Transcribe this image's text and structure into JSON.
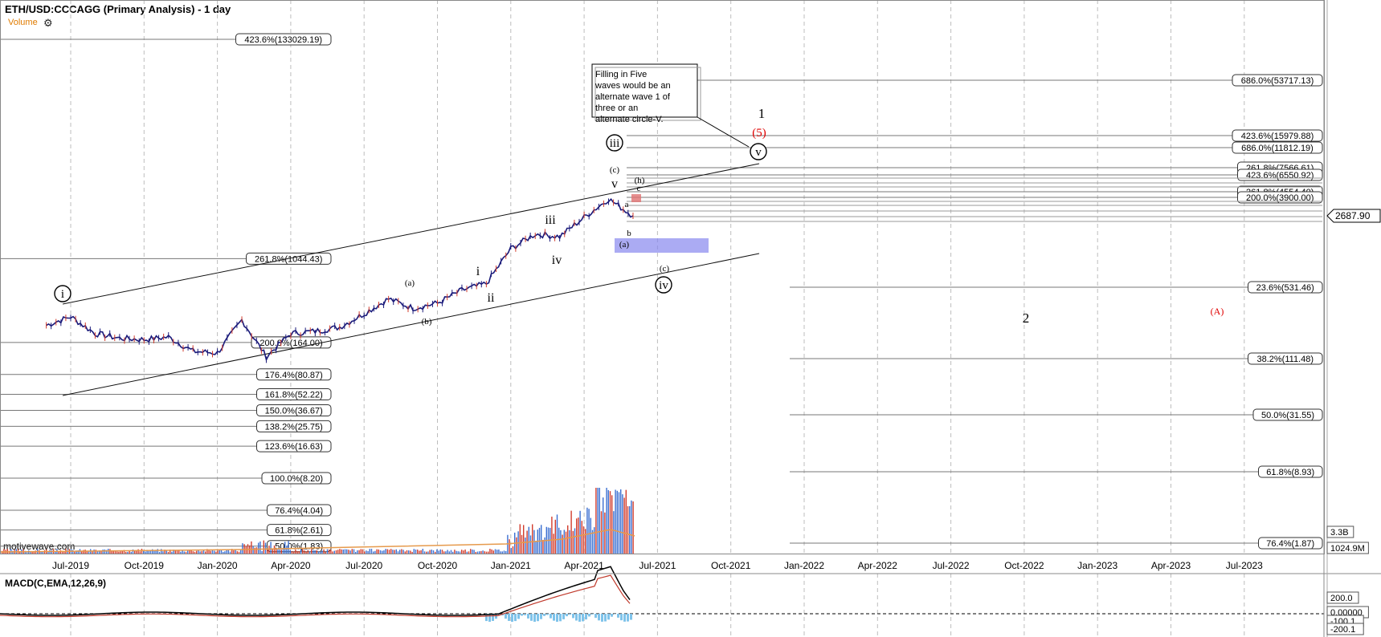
{
  "header": {
    "title": "ETH/USD:CCCAGG (Primary Analysis) - 1 day",
    "volume_label": "Volume",
    "macd_label": "MACD(C,EMA,12,26,9)",
    "watermark": "motivewave.com"
  },
  "colors": {
    "grid": "#bdbdbd",
    "candle": "#1a1a7a",
    "volume_up": "#3b6fd1",
    "volume_down": "#d23c2c",
    "volume_ma": "#e69a4c",
    "macd_line": "#000000",
    "signal_line": "#c0392b",
    "histogram": "#7fc3ea",
    "red_label": "#e00000",
    "blue_box": "#8888ee",
    "red_box": "#e07070"
  },
  "chart_data": {
    "type": "line",
    "x_ticks": [
      "Jul-2019",
      "Oct-2019",
      "Jan-2020",
      "Apr-2020",
      "Jul-2020",
      "Oct-2020",
      "Jan-2021",
      "Apr-2021",
      "Jul-2021",
      "Oct-2021",
      "Jan-2022",
      "Apr-2022",
      "Jul-2022",
      "Oct-2022",
      "Jan-2023",
      "Apr-2023",
      "Jul-2023"
    ],
    "y_scale": "log",
    "series": [
      {
        "values_x": [
          "Jun-2019",
          "Jul-2019",
          "Aug-2019",
          "Sep-2019",
          "Oct-2019",
          "Nov-2019",
          "Dec-2019",
          "Jan-2020",
          "Feb-2020",
          "Mar-2020",
          "Apr-2020",
          "May-2020",
          "Jun-2020",
          "Jul-2020",
          "Aug-2020",
          "Sep-2020",
          "Oct-2020",
          "Nov-2020",
          "Dec-2020",
          "Jan-2021",
          "Feb-2021",
          "Mar-2021",
          "Apr-2021",
          "May-2021",
          "Jun-2021"
        ],
        "values": [
          240,
          290,
          200,
          180,
          175,
          185,
          135,
          130,
          270,
          120,
          200,
          210,
          230,
          310,
          430,
          350,
          390,
          520,
          600,
          1300,
          1800,
          1700,
          2600,
          3900,
          2687.9
        ]
      }
    ],
    "current_price_label": "2687.90",
    "right_axis_labels": [
      "3.3B",
      "1024.9M",
      "200.0",
      "0.00000",
      "-100.1",
      "-200.1"
    ],
    "fib_levels_left": [
      {
        "label": "423.6%(133029.19)",
        "value": 133029.19
      },
      {
        "label": "261.8%(1044.43)",
        "value": 1044.43
      },
      {
        "label": "200.0%(164.00)",
        "value": 164.0
      },
      {
        "label": "176.4%(80.87)",
        "value": 80.87
      },
      {
        "label": "161.8%(52.22)",
        "value": 52.22
      },
      {
        "label": "150.0%(36.67)",
        "value": 36.67
      },
      {
        "label": "138.2%(25.75)",
        "value": 25.75
      },
      {
        "label": "123.6%(16.63)",
        "value": 16.63
      },
      {
        "label": "100.0%(8.20)",
        "value": 8.2
      },
      {
        "label": "76.4%(4.04)",
        "value": 4.04
      },
      {
        "label": "61.8%(2.61)",
        "value": 2.61
      },
      {
        "label": "50.0%(1.83)",
        "value": 1.83
      }
    ],
    "fib_levels_right": [
      {
        "label": "686.0%(53717.13)",
        "value": 53717.13
      },
      {
        "label": "423.6%(15979.88)",
        "value": 15979.88
      },
      {
        "label": "686.0%(11812.19)",
        "value": 11812.19
      },
      {
        "label": "261.8%(7566.61)",
        "value": 7566.61
      },
      {
        "label": "423.6%(6550.92)",
        "value": 6550.92
      },
      {
        "label": "261.8%(4554.40)",
        "value": 4554.4
      },
      {
        "label": "200.0%(3900.00)",
        "value": 3900.0
      },
      {
        "label": "23.6%(531.46)",
        "value": 531.46
      },
      {
        "label": "38.2%(111.48)",
        "value": 111.48
      },
      {
        "label": "50.0%(31.55)",
        "value": 31.55
      },
      {
        "label": "61.8%(8.93)",
        "value": 8.93
      },
      {
        "label": "76.4%(1.87)",
        "value": 1.87
      }
    ],
    "wave_labels": {
      "circle_i": "i",
      "circle_iii": "iii",
      "circle_iv": "iv",
      "circle_v": "v",
      "one": "1",
      "five": "(5)",
      "two": "2",
      "A": "(A)",
      "a_paren": "(a)",
      "b_paren": "(b)",
      "c_paren": "(c)",
      "h_paren": "(h)",
      "small_i": "i",
      "small_ii": "ii",
      "small_iii": "iii",
      "small_iv": "iv",
      "small_v": "v",
      "small_a": "a",
      "small_b": "b",
      "small_c": "c",
      "a_lower": "(a)",
      "c_lower": "(c)"
    },
    "annotation": "Filling in Five waves would be an alternate wave 1 of three or an alternate circle-V."
  }
}
